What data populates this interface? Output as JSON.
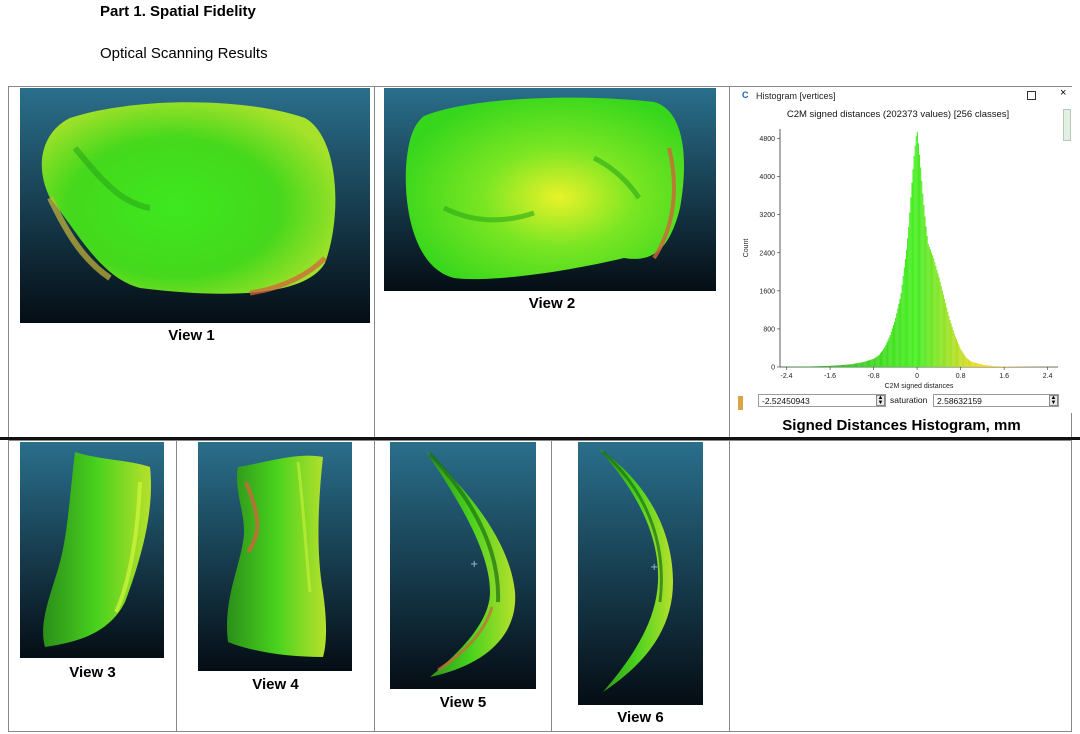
{
  "doc": {
    "heading": "Part 1. Spatial Fidelity",
    "subheading": "Optical Scanning Results"
  },
  "views": [
    {
      "label": "View 1"
    },
    {
      "label": "View 2"
    },
    {
      "label": "View 3"
    },
    {
      "label": "View 4"
    },
    {
      "label": "View 5"
    },
    {
      "label": "View 6"
    }
  ],
  "histogram_window": {
    "app_icon": "cloudcompare-icon",
    "title": "Histogram [vertices]",
    "controls": [
      "maximize-icon",
      "close-icon"
    ],
    "caption": "C2M signed distances (202373 values)  [256 classes]",
    "min_value": "-2.52450943",
    "saturation_label": "saturation",
    "saturation_value": "2.58632159",
    "footer": "Signed Distances Histogram, mm"
  },
  "colors": {
    "scan_background_top": "#2a6f8c",
    "scan_background_bottom": "#050d14",
    "surface_green": "#35d61c",
    "surface_yellow": "#e6ef2a",
    "surface_red": "#d0653a"
  },
  "chart_data": {
    "type": "bar",
    "title": "C2M signed distances (202373 values)  [256 classes]",
    "xlabel": "C2M signed distances",
    "ylabel": "Count",
    "xlim": [
      -2.52,
      2.59
    ],
    "ylim": [
      0,
      5000
    ],
    "xticks": [
      "-2.4",
      "-1.6",
      "-0.8",
      "0",
      "0.8",
      "1.6",
      "2.4"
    ],
    "yticks": [
      "0",
      "800",
      "1600",
      "2400",
      "3200",
      "4000",
      "4800"
    ],
    "x": [
      -2.4,
      -2.0,
      -1.6,
      -1.4,
      -1.2,
      -1.0,
      -0.8,
      -0.7,
      -0.6,
      -0.5,
      -0.4,
      -0.3,
      -0.2,
      -0.15,
      -0.1,
      -0.05,
      0.0,
      0.05,
      0.1,
      0.15,
      0.2,
      0.3,
      0.4,
      0.5,
      0.6,
      0.7,
      0.8,
      0.9,
      1.0,
      1.2,
      1.4,
      1.6,
      2.0,
      2.4
    ],
    "values": [
      5,
      10,
      25,
      40,
      60,
      100,
      170,
      250,
      400,
      650,
      1000,
      1500,
      2400,
      3000,
      3800,
      4500,
      5000,
      4400,
      3700,
      3100,
      2600,
      2300,
      1900,
      1450,
      1000,
      650,
      380,
      200,
      110,
      50,
      20,
      10,
      5,
      2
    ]
  }
}
